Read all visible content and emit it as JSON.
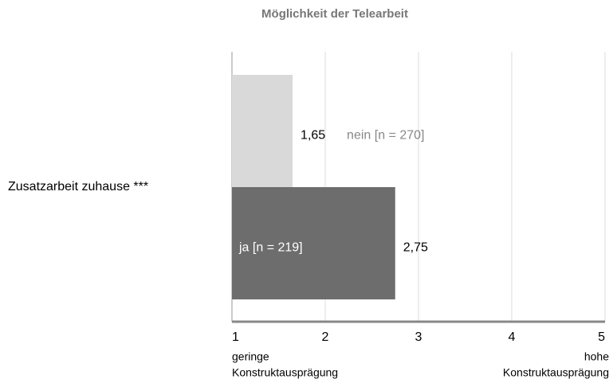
{
  "chart_data": {
    "type": "barh",
    "title": "Möglichkeit der Telearbeit",
    "categories": [
      "Zusatzarbeit zuhause ***"
    ],
    "series": [
      {
        "name": "nein [n = 270]",
        "color": "#d9d9d9",
        "values": [
          1.65
        ],
        "value_labels": [
          "1,65"
        ]
      },
      {
        "name": "ja [n = 219]",
        "color": "#6d6d6d",
        "values": [
          2.75
        ],
        "value_labels": [
          "2,75"
        ]
      }
    ],
    "xlim": [
      1,
      5
    ],
    "xticks": [
      1,
      2,
      3,
      4,
      5
    ],
    "grid": true,
    "axis_annotations": {
      "left": [
        "geringe",
        "Konstruktausprägung"
      ],
      "right": [
        "hohe",
        "Konstruktausprägung"
      ]
    }
  }
}
